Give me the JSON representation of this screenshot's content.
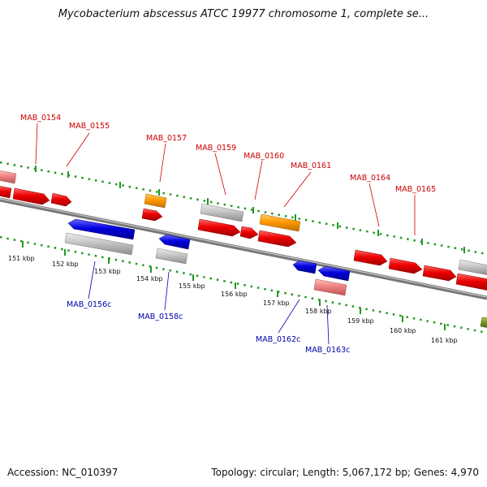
{
  "title": "Mycobacterium abscessus ATCC 19977 chromosome 1, complete se...",
  "footer": {
    "accession": "Accession: NC_010397",
    "summary": "Topology: circular; Length: 5,067,172 bp; Genes: 4,970"
  },
  "colors": {
    "forward_gene": "#ee0000",
    "reverse_gene": "#0000dd",
    "orange_feature": "#ff9900",
    "gray_feature": "#c0c0c0",
    "pink_feature": "#f08080",
    "olive_feature": "#779922",
    "dotted_track": "#229922",
    "forward_label": "#cc0000",
    "reverse_label": "#0000aa",
    "backbone": "#777777"
  },
  "kbp_ticks": [
    "151 kbp",
    "152 kbp",
    "153 kbp",
    "154 kbp",
    "155 kbp",
    "156 kbp",
    "157 kbp",
    "158 kbp",
    "159 kbp",
    "160 kbp",
    "161 kbp"
  ],
  "forward_labels": [
    "MAB_0154",
    "MAB_0155",
    "MAB_0157",
    "MAB_0159",
    "MAB_0160",
    "MAB_0161",
    "MAB_0164",
    "MAB_0165"
  ],
  "reverse_labels": [
    "MAB_0156c",
    "MAB_0158c",
    "MAB_0162c",
    "MAB_0163c"
  ]
}
